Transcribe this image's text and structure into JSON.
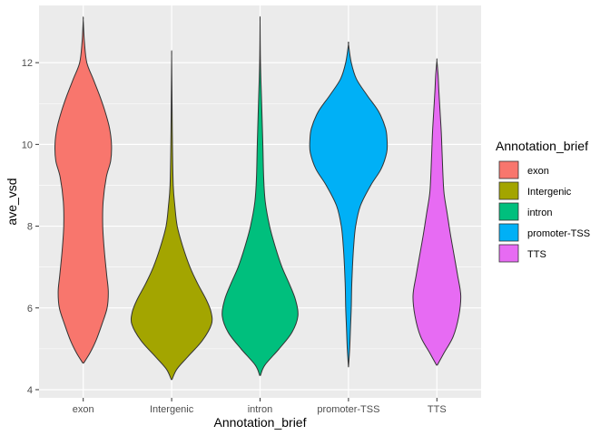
{
  "chart_data": {
    "type": "violin",
    "xlabel": "Annotation_brief",
    "ylabel": "ave_vsd",
    "ylim": [
      3.8,
      13.4
    ],
    "yticks": [
      4,
      6,
      8,
      10,
      12
    ],
    "grid": true,
    "legend": {
      "title": "Annotation_brief",
      "position": "right"
    },
    "categories": [
      "exon",
      "Intergenic",
      "intron",
      "promoter-TSS",
      "TTS"
    ],
    "series": [
      {
        "name": "exon",
        "color": "#F8766D",
        "min": 4.65,
        "max": 13.05,
        "profile": [
          [
            4.65,
            0.01
          ],
          [
            4.9,
            0.17
          ],
          [
            5.2,
            0.32
          ],
          [
            5.6,
            0.47
          ],
          [
            6.0,
            0.6
          ],
          [
            6.4,
            0.63
          ],
          [
            6.8,
            0.59
          ],
          [
            7.4,
            0.53
          ],
          [
            8.0,
            0.49
          ],
          [
            8.6,
            0.5
          ],
          [
            9.2,
            0.58
          ],
          [
            9.6,
            0.69
          ],
          [
            10.0,
            0.71
          ],
          [
            10.4,
            0.66
          ],
          [
            10.8,
            0.55
          ],
          [
            11.2,
            0.41
          ],
          [
            11.6,
            0.25
          ],
          [
            12.0,
            0.09
          ],
          [
            12.5,
            0.03
          ],
          [
            13.05,
            0.0
          ]
        ]
      },
      {
        "name": "Intergenic",
        "color": "#A3A500",
        "min": 4.25,
        "max": 12.15,
        "profile": [
          [
            4.25,
            0.01
          ],
          [
            4.5,
            0.13
          ],
          [
            4.8,
            0.4
          ],
          [
            5.2,
            0.77
          ],
          [
            5.6,
            1.0
          ],
          [
            5.9,
            0.99
          ],
          [
            6.2,
            0.87
          ],
          [
            6.6,
            0.65
          ],
          [
            7.0,
            0.46
          ],
          [
            7.5,
            0.28
          ],
          [
            8.0,
            0.14
          ],
          [
            8.5,
            0.08
          ],
          [
            9.0,
            0.04
          ],
          [
            10.0,
            0.02
          ],
          [
            11.0,
            0.01
          ],
          [
            12.15,
            0.0
          ]
        ]
      },
      {
        "name": "intron",
        "color": "#00BF7D",
        "min": 4.35,
        "max": 13.0,
        "profile": [
          [
            4.35,
            0.01
          ],
          [
            4.6,
            0.12
          ],
          [
            5.0,
            0.48
          ],
          [
            5.4,
            0.8
          ],
          [
            5.8,
            0.95
          ],
          [
            6.2,
            0.89
          ],
          [
            6.6,
            0.73
          ],
          [
            7.0,
            0.55
          ],
          [
            7.5,
            0.38
          ],
          [
            8.0,
            0.24
          ],
          [
            8.6,
            0.13
          ],
          [
            9.2,
            0.09
          ],
          [
            10.0,
            0.07
          ],
          [
            11.0,
            0.04
          ],
          [
            12.0,
            0.01
          ],
          [
            13.0,
            0.0
          ]
        ]
      },
      {
        "name": "promoter-TSS",
        "color": "#00B0F6",
        "min": 4.55,
        "max": 12.45,
        "profile": [
          [
            4.55,
            0.0
          ],
          [
            5.0,
            0.03
          ],
          [
            5.5,
            0.05
          ],
          [
            6.0,
            0.07
          ],
          [
            6.5,
            0.08
          ],
          [
            7.0,
            0.1
          ],
          [
            7.5,
            0.13
          ],
          [
            8.0,
            0.18
          ],
          [
            8.5,
            0.3
          ],
          [
            9.0,
            0.56
          ],
          [
            9.4,
            0.82
          ],
          [
            9.8,
            0.96
          ],
          [
            10.1,
            0.97
          ],
          [
            10.4,
            0.93
          ],
          [
            10.8,
            0.76
          ],
          [
            11.2,
            0.47
          ],
          [
            11.6,
            0.2
          ],
          [
            12.0,
            0.07
          ],
          [
            12.45,
            0.0
          ]
        ]
      },
      {
        "name": "TTS",
        "color": "#E76BF3",
        "min": 4.6,
        "max": 12.05,
        "profile": [
          [
            4.6,
            0.01
          ],
          [
            4.9,
            0.18
          ],
          [
            5.3,
            0.41
          ],
          [
            5.8,
            0.55
          ],
          [
            6.3,
            0.6
          ],
          [
            6.8,
            0.52
          ],
          [
            7.3,
            0.43
          ],
          [
            7.8,
            0.34
          ],
          [
            8.3,
            0.26
          ],
          [
            8.8,
            0.18
          ],
          [
            9.3,
            0.15
          ],
          [
            9.8,
            0.13
          ],
          [
            10.3,
            0.11
          ],
          [
            10.8,
            0.08
          ],
          [
            11.3,
            0.05
          ],
          [
            11.7,
            0.03
          ],
          [
            12.05,
            0.0
          ]
        ]
      }
    ]
  }
}
